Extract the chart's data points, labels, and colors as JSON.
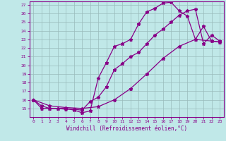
{
  "xlabel": "Windchill (Refroidissement éolien,°C)",
  "bg_color": "#c0e8e8",
  "line_color": "#880088",
  "grid_color": "#99bbbb",
  "xlim": [
    -0.5,
    23.5
  ],
  "ylim": [
    14,
    27.4
  ],
  "yticks": [
    15,
    16,
    17,
    18,
    19,
    20,
    21,
    22,
    23,
    24,
    25,
    26,
    27
  ],
  "xticks": [
    0,
    1,
    2,
    3,
    4,
    5,
    6,
    7,
    8,
    9,
    10,
    11,
    12,
    13,
    14,
    15,
    16,
    17,
    18,
    19,
    20,
    21,
    22,
    23
  ],
  "series1_x": [
    0,
    1,
    2,
    3,
    4,
    5,
    6,
    7,
    8,
    9,
    10,
    11,
    12,
    13,
    14,
    15,
    16,
    17,
    18,
    19,
    20,
    21,
    22,
    23
  ],
  "series1_y": [
    16,
    15,
    15,
    15,
    15,
    14.8,
    14.5,
    14.7,
    18.5,
    20.3,
    22.2,
    22.5,
    23.0,
    24.8,
    26.2,
    26.6,
    27.2,
    27.3,
    26.3,
    25.7,
    23.0,
    24.5,
    22.8,
    22.7
  ],
  "series2_x": [
    0,
    1,
    2,
    3,
    4,
    5,
    6,
    7,
    8,
    9,
    10,
    11,
    12,
    13,
    14,
    15,
    16,
    17,
    18,
    19,
    20,
    21,
    22,
    23
  ],
  "series2_y": [
    16,
    15.3,
    15.0,
    15.0,
    14.9,
    14.9,
    14.8,
    15.8,
    16.3,
    17.5,
    19.5,
    20.2,
    21.0,
    21.5,
    22.5,
    23.5,
    24.2,
    25.0,
    25.8,
    26.3,
    26.5,
    22.5,
    23.5,
    22.8
  ],
  "series3_x": [
    0,
    2,
    4,
    6,
    8,
    10,
    12,
    14,
    16,
    18,
    20,
    22,
    23
  ],
  "series3_y": [
    16.0,
    15.3,
    15.1,
    15.0,
    15.2,
    16.0,
    17.3,
    19.0,
    20.8,
    22.2,
    23.0,
    22.8,
    22.7
  ]
}
